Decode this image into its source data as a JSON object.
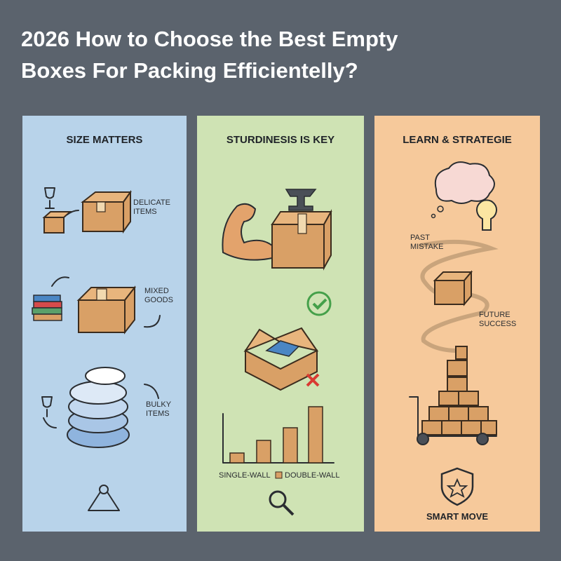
{
  "header": {
    "title_lines": [
      "2026 How to Choose the Best Empty",
      "Boxes For Packing Efficientelly?"
    ]
  },
  "panels": [
    {
      "heading": "SIZE MATTERS",
      "labels": [
        [
          "DELICATE",
          "ITEMS"
        ],
        [
          "MIXED",
          "GOODS"
        ],
        [
          "BULKY",
          "ITEMS"
        ]
      ]
    },
    {
      "heading": "STURDINESIS IS KEY",
      "legend": [
        "SINGLE-WALL",
        "DOUBLE-WALL"
      ]
    },
    {
      "heading": "LEARN & STRATEGIE",
      "labels": [
        [
          "PAST",
          "MISTAKE"
        ],
        [
          "FUTURE",
          "SUCCESS"
        ],
        [
          "SMART MOVE"
        ]
      ]
    }
  ]
}
